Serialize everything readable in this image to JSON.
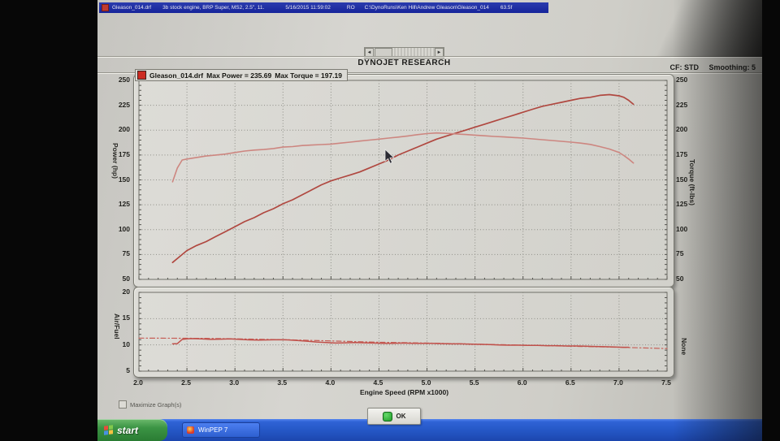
{
  "title_bar": {
    "file": "Gleason_014.drf",
    "description": "3b stock engine, BRP Super, MS2, 2.5\", 11.",
    "datetime": "5/16/2015 11:59:02",
    "mode": "RO",
    "path": "C:\\DynoRuns\\Ken Hill\\Andrew Gleason\\Gleason_014",
    "temperature": "63.5f"
  },
  "header": {
    "brand": "DYNOJET RESEARCH",
    "cf_label": "CF: STD",
    "smoothing_label": "Smoothing: 5"
  },
  "legend": {
    "run": "Gleason_014.drf",
    "max_power_label": "Max Power = 235.69",
    "max_torque_label": "Max Torque = 197.19",
    "swatch_color": "#cc2b22"
  },
  "chart_data": [
    {
      "type": "line",
      "title": "Power / Torque vs Engine Speed",
      "xlabel": "Engine Speed (RPM x1000)",
      "ylabel_left": "Power (hp)",
      "ylabel_right": "Torque (ft-lbs)",
      "xlim": [
        2.0,
        7.5
      ],
      "ylim": [
        50,
        250
      ],
      "x_grid": [
        2.5,
        3.0,
        3.5,
        4.0,
        4.5,
        5.0,
        5.5,
        6.0,
        6.5,
        7.0
      ],
      "y_grid": [
        75,
        100,
        125,
        150,
        175,
        200,
        225
      ],
      "y_ticks": [
        250,
        225,
        200,
        175,
        150,
        125,
        100,
        75,
        50
      ],
      "grid": "dotted",
      "legend_position": "top-left",
      "max_power": 235.69,
      "max_torque": 197.19,
      "series": [
        {
          "name": "Power (hp)",
          "color": "#b04840",
          "width": 1.7,
          "points": [
            [
              2.35,
              67
            ],
            [
              2.45,
              75
            ],
            [
              2.5,
              79
            ],
            [
              2.6,
              84
            ],
            [
              2.7,
              88
            ],
            [
              2.8,
              93
            ],
            [
              2.9,
              98
            ],
            [
              3.0,
              103
            ],
            [
              3.1,
              108
            ],
            [
              3.2,
              112
            ],
            [
              3.3,
              117
            ],
            [
              3.4,
              121
            ],
            [
              3.5,
              126
            ],
            [
              3.6,
              130
            ],
            [
              3.7,
              135
            ],
            [
              3.8,
              140
            ],
            [
              3.9,
              145
            ],
            [
              4.0,
              149
            ],
            [
              4.1,
              152
            ],
            [
              4.2,
              155
            ],
            [
              4.3,
              158
            ],
            [
              4.4,
              162
            ],
            [
              4.5,
              166
            ],
            [
              4.6,
              170
            ],
            [
              4.7,
              175
            ],
            [
              4.8,
              179
            ],
            [
              4.9,
              183
            ],
            [
              5.0,
              187
            ],
            [
              5.1,
              191
            ],
            [
              5.2,
              194
            ],
            [
              5.3,
              197
            ],
            [
              5.4,
              200
            ],
            [
              5.5,
              203
            ],
            [
              5.6,
              206
            ],
            [
              5.7,
              209
            ],
            [
              5.8,
              212
            ],
            [
              5.9,
              215
            ],
            [
              6.0,
              218
            ],
            [
              6.1,
              221
            ],
            [
              6.2,
              224
            ],
            [
              6.3,
              226
            ],
            [
              6.4,
              228
            ],
            [
              6.5,
              230
            ],
            [
              6.6,
              232
            ],
            [
              6.7,
              233
            ],
            [
              6.8,
              235
            ],
            [
              6.9,
              235.7
            ],
            [
              7.0,
              234.5
            ],
            [
              7.05,
              233
            ],
            [
              7.1,
              230
            ],
            [
              7.15,
              226
            ]
          ]
        },
        {
          "name": "Torque (ft-lbs)",
          "color": "#cd8680",
          "width": 1.6,
          "points": [
            [
              2.35,
              148
            ],
            [
              2.4,
              162
            ],
            [
              2.45,
              170
            ],
            [
              2.5,
              171
            ],
            [
              2.6,
              172.5
            ],
            [
              2.7,
              174
            ],
            [
              2.8,
              175
            ],
            [
              2.9,
              176
            ],
            [
              3.0,
              177.5
            ],
            [
              3.1,
              179
            ],
            [
              3.2,
              180
            ],
            [
              3.3,
              180.5
            ],
            [
              3.4,
              181.5
            ],
            [
              3.5,
              183
            ],
            [
              3.6,
              183.5
            ],
            [
              3.7,
              184.5
            ],
            [
              3.8,
              185
            ],
            [
              3.9,
              185.5
            ],
            [
              4.0,
              186
            ],
            [
              4.1,
              187
            ],
            [
              4.2,
              188
            ],
            [
              4.3,
              189
            ],
            [
              4.4,
              190
            ],
            [
              4.5,
              191
            ],
            [
              4.6,
              192
            ],
            [
              4.7,
              193
            ],
            [
              4.8,
              194.2
            ],
            [
              4.9,
              195.5
            ],
            [
              5.0,
              196.5
            ],
            [
              5.1,
              197.2
            ],
            [
              5.2,
              196.8
            ],
            [
              5.3,
              196.2
            ],
            [
              5.4,
              195.6
            ],
            [
              5.5,
              195
            ],
            [
              5.6,
              194.3
            ],
            [
              5.7,
              193.7
            ],
            [
              5.8,
              193.2
            ],
            [
              5.9,
              192.6
            ],
            [
              6.0,
              192
            ],
            [
              6.1,
              191.2
            ],
            [
              6.2,
              190.4
            ],
            [
              6.3,
              189.6
            ],
            [
              6.4,
              188.8
            ],
            [
              6.5,
              188
            ],
            [
              6.6,
              187
            ],
            [
              6.7,
              185.7
            ],
            [
              6.8,
              183.5
            ],
            [
              6.9,
              181
            ],
            [
              7.0,
              177.5
            ],
            [
              7.05,
              174.5
            ],
            [
              7.1,
              171
            ],
            [
              7.15,
              167
            ]
          ]
        }
      ]
    },
    {
      "type": "line",
      "title": "Air/Fuel vs Engine Speed",
      "xlabel": "Engine Speed (RPM x1000)",
      "ylabel_left": "Air/Fuel",
      "ylabel_right": "None",
      "xlim": [
        2.0,
        7.5
      ],
      "ylim": [
        5,
        20
      ],
      "x_grid": [
        2.5,
        3.0,
        3.5,
        4.0,
        4.5,
        5.0,
        5.5,
        6.0,
        6.5,
        7.0
      ],
      "y_grid": [
        10,
        15
      ],
      "y_ticks": [
        20,
        15,
        10,
        5
      ],
      "x_ticks": [
        2.0,
        2.5,
        3.0,
        3.5,
        4.0,
        4.5,
        5.0,
        5.5,
        6.0,
        6.5,
        7.0,
        7.5
      ],
      "x_tick_labels": [
        "2.0",
        "2.5",
        "3.0",
        "3.5",
        "4.0",
        "4.5",
        "5.0",
        "5.5",
        "6.0",
        "6.5",
        "7.0",
        "7.5"
      ],
      "grid": "dotted",
      "series": [
        {
          "name": "Air/Fuel target",
          "color": "#c65e56",
          "width": 1.2,
          "dash": "6 3 1.5 3",
          "points": [
            [
              2.0,
              11.3
            ],
            [
              2.7,
              11.25
            ],
            [
              3.5,
              11.0
            ],
            [
              4.0,
              10.75
            ],
            [
              4.5,
              10.5
            ],
            [
              5.0,
              10.35
            ],
            [
              5.5,
              10.15
            ],
            [
              6.0,
              9.95
            ],
            [
              6.5,
              9.75
            ],
            [
              7.0,
              9.55
            ],
            [
              7.5,
              9.3
            ]
          ]
        },
        {
          "name": "Air/Fuel",
          "color": "#c0504a",
          "width": 1.5,
          "points": [
            [
              2.35,
              10.2
            ],
            [
              2.4,
              10.25
            ],
            [
              2.45,
              11.05
            ],
            [
              2.5,
              11.15
            ],
            [
              2.55,
              11.2
            ],
            [
              2.65,
              11.15
            ],
            [
              2.75,
              11.05
            ],
            [
              2.85,
              11.1
            ],
            [
              2.95,
              11.15
            ],
            [
              3.05,
              11.05
            ],
            [
              3.15,
              10.95
            ],
            [
              3.25,
              10.9
            ],
            [
              3.35,
              10.95
            ],
            [
              3.45,
              11.0
            ],
            [
              3.55,
              10.95
            ],
            [
              3.65,
              10.85
            ],
            [
              3.75,
              10.7
            ],
            [
              3.85,
              10.55
            ],
            [
              3.95,
              10.45
            ],
            [
              4.05,
              10.35
            ],
            [
              4.15,
              10.4
            ],
            [
              4.25,
              10.45
            ],
            [
              4.35,
              10.4
            ],
            [
              4.45,
              10.35
            ],
            [
              4.55,
              10.3
            ],
            [
              4.65,
              10.3
            ],
            [
              4.75,
              10.35
            ],
            [
              4.85,
              10.3
            ],
            [
              4.95,
              10.3
            ],
            [
              5.05,
              10.3
            ],
            [
              5.15,
              10.25
            ],
            [
              5.25,
              10.2
            ],
            [
              5.35,
              10.2
            ],
            [
              5.45,
              10.15
            ],
            [
              5.55,
              10.1
            ],
            [
              5.65,
              10.05
            ],
            [
              5.75,
              10.0
            ],
            [
              5.85,
              9.95
            ],
            [
              5.95,
              9.95
            ],
            [
              6.05,
              9.9
            ],
            [
              6.15,
              9.9
            ],
            [
              6.25,
              9.85
            ],
            [
              6.35,
              9.85
            ],
            [
              6.45,
              9.8
            ],
            [
              6.55,
              9.8
            ],
            [
              6.65,
              9.75
            ],
            [
              6.75,
              9.7
            ],
            [
              6.85,
              9.65
            ],
            [
              6.95,
              9.6
            ],
            [
              7.05,
              9.55
            ],
            [
              7.1,
              9.55
            ]
          ]
        }
      ]
    }
  ],
  "footer": {
    "maximize_label": "Maximize Graph(s)",
    "ok_label": "OK"
  },
  "taskbar": {
    "start_label": "start",
    "task_label": "WinPEP 7"
  }
}
